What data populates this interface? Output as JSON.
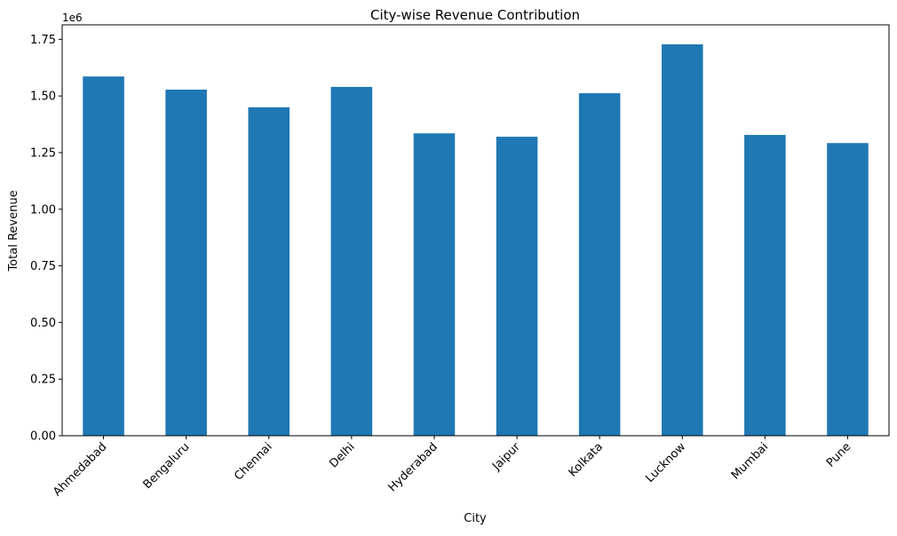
{
  "chart_data": {
    "type": "bar",
    "title": "City-wise Revenue Contribution",
    "xlabel": "City",
    "ylabel": "Total Revenue",
    "offset_label": "1e6",
    "categories": [
      "Ahmedabad",
      "Bengaluru",
      "Chennai",
      "Delhi",
      "Hyderabad",
      "Jaipur",
      "Kolkata",
      "Lucknow",
      "Mumbai",
      "Pune"
    ],
    "values": [
      1586000,
      1528000,
      1450000,
      1540000,
      1335000,
      1320000,
      1512000,
      1728000,
      1328000,
      1292000
    ],
    "yticks": [
      0,
      250000,
      500000,
      750000,
      1000000,
      1250000,
      1500000,
      1750000
    ],
    "ytick_labels": [
      "0.00",
      "0.25",
      "0.50",
      "0.75",
      "1.00",
      "1.25",
      "1.50",
      "1.75"
    ],
    "ylim": [
      0,
      1814000
    ],
    "bar_color": "#1f77b4",
    "grid": false,
    "legend": "none"
  }
}
